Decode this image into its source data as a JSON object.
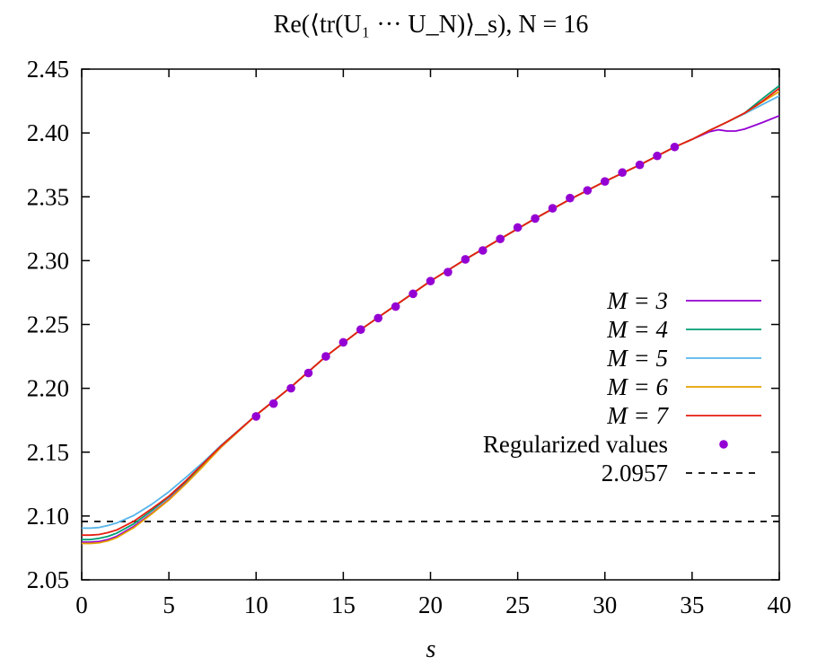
{
  "chart_data": {
    "type": "line",
    "title": "Re(⟨tr(U₁ ··· U_N)⟩_s), N = 16",
    "xlabel": "s",
    "ylabel": "",
    "xlim": [
      0,
      40
    ],
    "ylim": [
      2.05,
      2.45
    ],
    "x_ticks": [
      "0",
      "5",
      "10",
      "15",
      "20",
      "25",
      "30",
      "35",
      "40"
    ],
    "y_ticks": [
      "2.05",
      "2.10",
      "2.15",
      "2.20",
      "2.25",
      "2.30",
      "2.35",
      "2.40",
      "2.45"
    ],
    "legend_position": "right",
    "grid": false,
    "series": [
      {
        "name": "M = 3",
        "color": "#9400d3",
        "x": [
          0,
          0.5,
          1,
          1.5,
          2,
          3,
          4,
          5,
          6,
          7,
          8,
          10,
          12,
          14,
          16,
          18,
          20,
          22,
          24,
          26,
          28,
          30,
          32,
          34,
          35,
          36,
          36.5,
          37,
          37.5,
          38,
          39,
          40
        ],
        "y": [
          2.0795,
          2.0795,
          2.08,
          2.0815,
          2.084,
          2.092,
          2.102,
          2.113,
          2.126,
          2.14,
          2.154,
          2.179,
          2.201,
          2.225,
          2.246,
          2.265,
          2.284,
          2.301,
          2.317,
          2.333,
          2.348,
          2.362,
          2.375,
          2.389,
          2.395,
          2.401,
          2.4025,
          2.4015,
          2.4015,
          2.403,
          2.408,
          2.4135
        ]
      },
      {
        "name": "M = 4",
        "color": "#009e73",
        "x": [
          0,
          0.5,
          1,
          1.5,
          2,
          3,
          4,
          5,
          6,
          7,
          8,
          10,
          12,
          14,
          16,
          18,
          20,
          22,
          24,
          26,
          28,
          30,
          32,
          34,
          35,
          36,
          37,
          38,
          39,
          40
        ],
        "y": [
          2.0815,
          2.0815,
          2.0825,
          2.084,
          2.0865,
          2.094,
          2.104,
          2.115,
          2.1275,
          2.141,
          2.155,
          2.179,
          2.201,
          2.225,
          2.246,
          2.265,
          2.284,
          2.301,
          2.317,
          2.333,
          2.348,
          2.362,
          2.375,
          2.389,
          2.395,
          2.402,
          2.4085,
          2.4155,
          2.4265,
          2.437
        ]
      },
      {
        "name": "M = 5",
        "color": "#56b4e9",
        "x": [
          0,
          0.5,
          1,
          1.5,
          2,
          3,
          4,
          5,
          6,
          7,
          8,
          10,
          12,
          14,
          16,
          18,
          20,
          22,
          24,
          26,
          28,
          30,
          32,
          34,
          35,
          36,
          37,
          38,
          39,
          40
        ],
        "y": [
          2.0905,
          2.0905,
          2.091,
          2.0925,
          2.0945,
          2.1005,
          2.109,
          2.119,
          2.1305,
          2.1425,
          2.1555,
          2.179,
          2.201,
          2.225,
          2.246,
          2.265,
          2.284,
          2.301,
          2.317,
          2.333,
          2.348,
          2.362,
          2.375,
          2.389,
          2.395,
          2.402,
          2.4085,
          2.415,
          2.422,
          2.429
        ]
      },
      {
        "name": "M = 6",
        "color": "#e69f00",
        "x": [
          0,
          0.5,
          1,
          1.5,
          2,
          3,
          4,
          5,
          6,
          7,
          8,
          10,
          12,
          14,
          16,
          18,
          20,
          22,
          24,
          26,
          28,
          30,
          32,
          34,
          35,
          36,
          37,
          38,
          39,
          40
        ],
        "y": [
          2.0785,
          2.0785,
          2.079,
          2.0805,
          2.083,
          2.091,
          2.1015,
          2.1125,
          2.1255,
          2.1395,
          2.154,
          2.179,
          2.201,
          2.225,
          2.246,
          2.265,
          2.284,
          2.301,
          2.317,
          2.333,
          2.348,
          2.362,
          2.375,
          2.389,
          2.395,
          2.402,
          2.4085,
          2.4155,
          2.424,
          2.4325
        ]
      },
      {
        "name": "M = 7",
        "color": "#e51e10",
        "x": [
          0,
          0.5,
          1,
          1.5,
          2,
          3,
          4,
          5,
          6,
          7,
          8,
          10,
          12,
          14,
          16,
          18,
          20,
          22,
          24,
          26,
          28,
          30,
          32,
          34,
          35,
          36,
          37,
          38,
          39,
          40
        ],
        "y": [
          2.085,
          2.085,
          2.0855,
          2.087,
          2.089,
          2.096,
          2.1055,
          2.1155,
          2.128,
          2.1415,
          2.155,
          2.179,
          2.201,
          2.225,
          2.246,
          2.265,
          2.284,
          2.301,
          2.317,
          2.333,
          2.348,
          2.362,
          2.375,
          2.389,
          2.395,
          2.402,
          2.4085,
          2.4155,
          2.4245,
          2.435
        ]
      }
    ],
    "points": {
      "name": "Regularized values",
      "color": "#9400d3",
      "x": [
        10,
        11,
        12,
        13,
        14,
        15,
        16,
        17,
        18,
        19,
        20,
        21,
        22,
        23,
        24,
        25,
        26,
        27,
        28,
        29,
        30,
        31,
        32,
        33,
        34
      ],
      "y": [
        2.178,
        2.188,
        2.2,
        2.212,
        2.225,
        2.236,
        2.246,
        2.255,
        2.264,
        2.274,
        2.284,
        2.291,
        2.301,
        2.308,
        2.317,
        2.326,
        2.333,
        2.341,
        2.349,
        2.355,
        2.362,
        2.369,
        2.375,
        2.382,
        2.389
      ]
    },
    "reference_line": {
      "name": "2.0957",
      "value": 2.0957,
      "color": "#000000",
      "style": "dashed"
    }
  }
}
